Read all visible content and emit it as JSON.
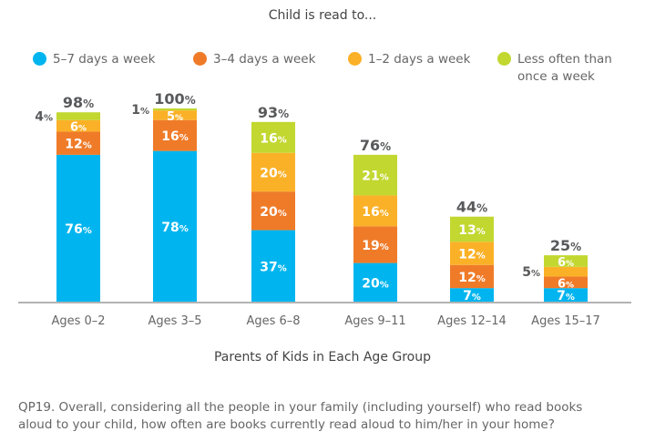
{
  "chart_data": {
    "type": "bar",
    "stacked": true,
    "title": "Child is read to...",
    "xlabel": "Parents of Kids in Each Age Group",
    "ylabel": "",
    "ylim": [
      0,
      100
    ],
    "grid": false,
    "legend_position": "top",
    "categories": [
      "Ages 0–2",
      "Ages 3–5",
      "Ages 6–8",
      "Ages 9–11",
      "Ages 12–14",
      "Ages 15–17"
    ],
    "totals": [
      "98%",
      "100%",
      "93%",
      "76%",
      "44%",
      "25%"
    ],
    "series": [
      {
        "name": "5–7 days a week",
        "color": "#00b5ef",
        "values": [
          76,
          78,
          37,
          20,
          7,
          7
        ],
        "labels": [
          "76%",
          "78%",
          "37%",
          "20%",
          "7%",
          "7%"
        ],
        "label_outside": [
          false,
          false,
          false,
          false,
          false,
          false
        ]
      },
      {
        "name": "3–4 days a week",
        "color": "#ef7b29",
        "values": [
          12,
          16,
          20,
          19,
          12,
          6
        ],
        "labels": [
          "12%",
          "16%",
          "20%",
          "19%",
          "12%",
          "6%"
        ],
        "label_outside": [
          false,
          false,
          false,
          false,
          false,
          false
        ]
      },
      {
        "name": "1–2 days a week",
        "color": "#fbb127",
        "values": [
          6,
          5,
          20,
          16,
          12,
          5
        ],
        "labels": [
          "6%",
          "5%",
          "20%",
          "16%",
          "12%",
          "5%"
        ],
        "label_outside": [
          false,
          false,
          false,
          false,
          false,
          true
        ]
      },
      {
        "name": "Less often than once a week",
        "color": "#c2d730",
        "values": [
          4,
          1,
          16,
          21,
          13,
          6
        ],
        "labels": [
          "4%",
          "1%",
          "16%",
          "21%",
          "13%",
          "6%"
        ],
        "label_outside": [
          true,
          true,
          false,
          false,
          false,
          false
        ]
      }
    ]
  },
  "legend": {
    "items": [
      {
        "label_lines": [
          "5–7 days a week"
        ],
        "color": "#00b5ef"
      },
      {
        "label_lines": [
          "3–4 days a week"
        ],
        "color": "#ef7b29"
      },
      {
        "label_lines": [
          "1–2 days a week"
        ],
        "color": "#fbb127"
      },
      {
        "label_lines": [
          "Less often than",
          "once a week"
        ],
        "color": "#c2d730"
      }
    ]
  },
  "colors": {
    "axis": "#b3b3b3",
    "total_label": "#58595b",
    "inner_label": "#ffffff"
  },
  "footnote": {
    "lines": [
      "QP19. Overall, considering all the people in your family (including yourself) who read books",
      "aloud to your child, how often are books currently read aloud to him/her in your home?"
    ]
  }
}
